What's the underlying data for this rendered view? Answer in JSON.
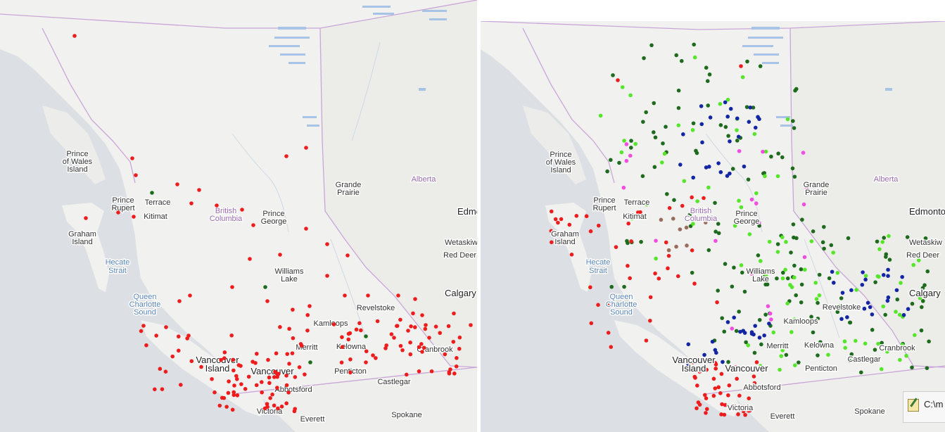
{
  "colors": {
    "ocean": "#dcdfe3",
    "land": "#f1f1ef",
    "land_alt": "#e7e7e5",
    "border": "#c9a6d8",
    "lake": "#a7c3e6",
    "red": "#ee1d1d",
    "dark_green": "#1e6b1e",
    "lime": "#55e62a",
    "blue": "#1326a3",
    "magenta": "#f24de0",
    "brown": "#9a6c5c"
  },
  "labels": {
    "prince_wales": [
      "Prince",
      "of Wales",
      "Island"
    ],
    "prince_rupert": [
      "Prince",
      "Rupert"
    ],
    "terrace": "Terrace",
    "kitimat": "Kitimat",
    "graham": [
      "Graham",
      "Island"
    ],
    "hecate": [
      "Hecate",
      "Strait"
    ],
    "queen": [
      "Queen",
      "Charlotte",
      "Sound"
    ],
    "british_columbia": [
      "British",
      "Columbia"
    ],
    "prince_george": [
      "Prince",
      "George"
    ],
    "grande_prairie": [
      "Grande",
      "Prairie"
    ],
    "alberta": "Alberta",
    "edmonton": "Edmonton",
    "wetaskiwin": "Wetaskiw",
    "red_deer": "Red Deer",
    "williams_lake": [
      "Williams",
      "Lake"
    ],
    "calgary": "Calgary",
    "revelstoke": "Revelstoke",
    "kamloops": "Kamloops",
    "merritt": "Merritt",
    "kelowna": "Kelowna",
    "cranbrook": "Cranbrook",
    "castlegar": "Castlegar",
    "penticton": "Penticton",
    "vancouver_island": [
      "Vancouver",
      "Island"
    ],
    "vancouver": "Vancouver",
    "abbotsford": "Abbotsford",
    "victoria": "Victoria",
    "everett": "Everett",
    "spokane": "Spokane"
  },
  "popup": {
    "text": "C:\\m"
  }
}
